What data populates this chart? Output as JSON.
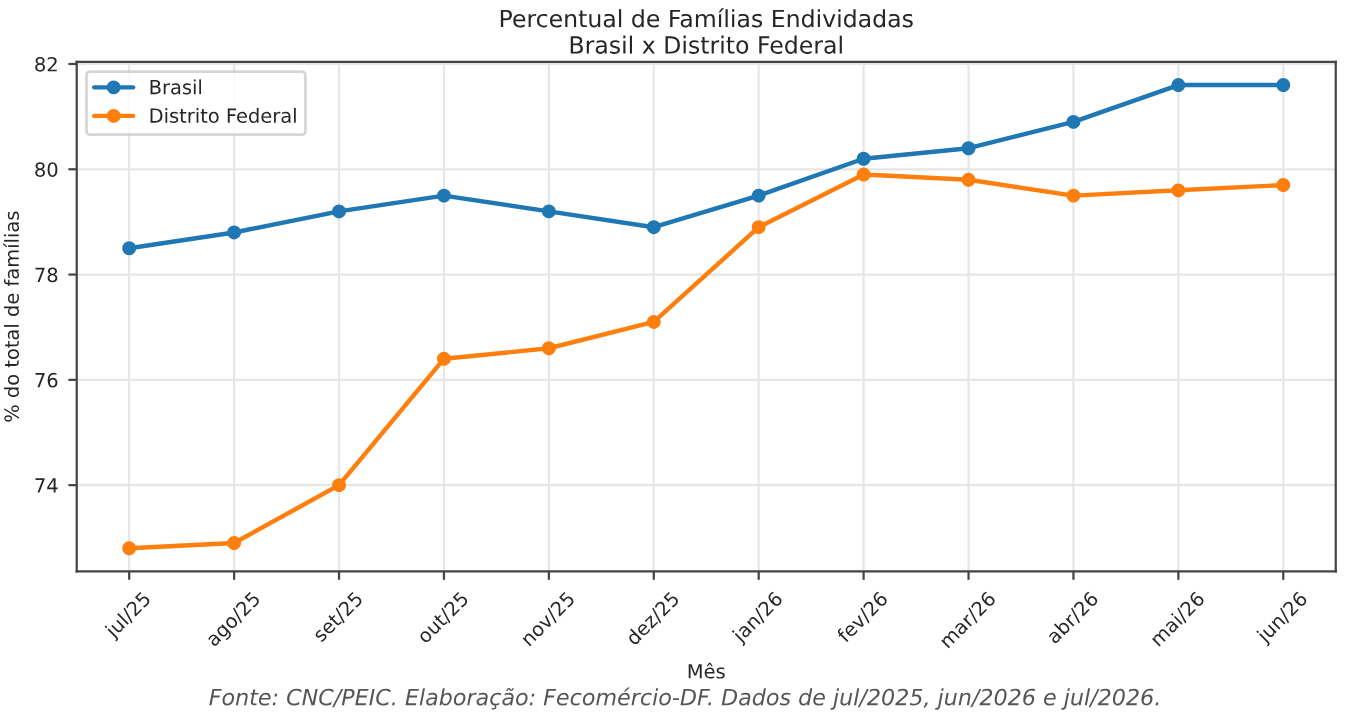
{
  "chart_data": {
    "type": "line",
    "title": "Percentual de Famílias Endividadas\nBrasil x Distrito Federal",
    "xlabel": "Mês",
    "ylabel": "% do total de famílias",
    "categories": [
      "jul/25",
      "ago/25",
      "set/25",
      "out/25",
      "nov/25",
      "dez/25",
      "jan/26",
      "fev/26",
      "mar/26",
      "abr/26",
      "mai/26",
      "jun/26"
    ],
    "series": [
      {
        "name": "Brasil",
        "color": "#1f77b4",
        "values": [
          78.5,
          78.8,
          79.2,
          79.5,
          79.2,
          78.9,
          79.5,
          80.2,
          80.4,
          80.9,
          81.6,
          81.6
        ]
      },
      {
        "name": "Distrito Federal",
        "color": "#ff7f0e",
        "values": [
          72.8,
          72.9,
          74.0,
          76.4,
          76.6,
          77.1,
          78.9,
          79.9,
          79.8,
          79.5,
          79.6,
          79.7
        ]
      }
    ],
    "ylim": [
      72.36,
      82.04
    ],
    "yticks": [
      74,
      76,
      78,
      80,
      82
    ],
    "grid": true,
    "legend": "top left",
    "marker": "circle",
    "line_style": "solid",
    "annotations": [
      "Fonte: CNC/PEIC. Elaboração: Fecomércio-DF. Dados de jul/2025, jun/2026 e jul/2026."
    ]
  }
}
